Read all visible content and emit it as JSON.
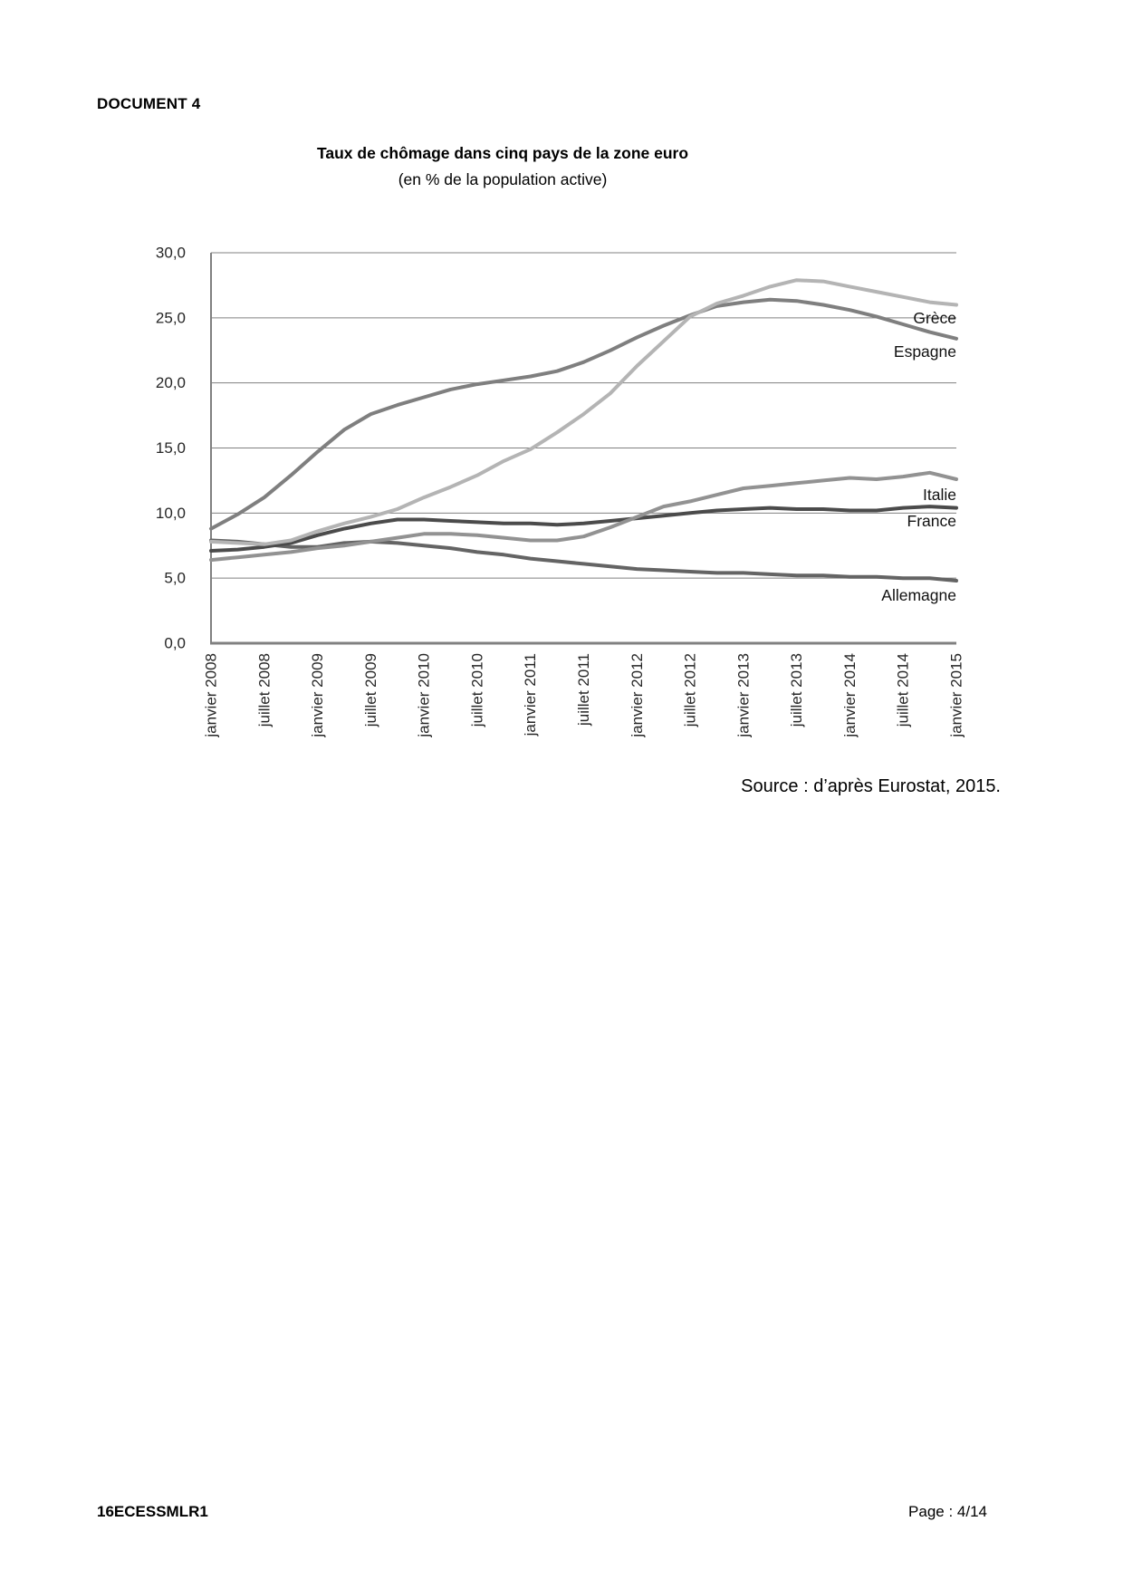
{
  "document": {
    "label": "DOCUMENT 4",
    "source": "Source : d’après Eurostat, 2015.",
    "footer_left": "16ECESSMLR1",
    "footer_right": "Page : 4/14"
  },
  "chart_data": {
    "type": "line",
    "title": "Taux de chômage dans cinq pays de la zone euro",
    "subtitle": "(en % de la population active)",
    "xlabel": "",
    "ylabel": "",
    "ylim": [
      0,
      30
    ],
    "grid": "horizontal",
    "axis_color": "#808080",
    "tick_text_color": "#262626",
    "legend_position": "end-of-line labels at right",
    "y_ticks": [
      0,
      5,
      10,
      15,
      20,
      25,
      30
    ],
    "y_tick_labels": [
      "0,0",
      "5,0",
      "10,0",
      "15,0",
      "20,0",
      "25,0",
      "30,0"
    ],
    "x_unit": "months since janvier 2008 (monthly data, ticks every 6 months)",
    "x_tick_months": [
      0,
      6,
      12,
      18,
      24,
      30,
      36,
      42,
      48,
      54,
      60,
      66,
      72,
      78,
      84
    ],
    "x_tick_labels": [
      "janvier 2008",
      "juillet 2008",
      "janvier 2009",
      "juillet 2009",
      "janvier 2010",
      "juillet 2010",
      "janvier 2011",
      "juillet 2011",
      "janvier 2012",
      "juillet 2012",
      "janvier 2013",
      "juillet 2013",
      "janvier 2014",
      "juillet 2014",
      "janvier 2015"
    ],
    "sample_months": [
      0,
      3,
      6,
      9,
      12,
      15,
      18,
      21,
      24,
      27,
      30,
      33,
      36,
      39,
      42,
      45,
      48,
      51,
      54,
      57,
      60,
      63,
      66,
      69,
      72,
      75,
      78,
      81,
      84
    ],
    "series": [
      {
        "name": "Grèce",
        "key": "grece",
        "color": "#b4b4b4",
        "label_y": 25.0,
        "values": [
          7.8,
          7.7,
          7.6,
          7.9,
          8.6,
          9.2,
          9.7,
          10.3,
          11.2,
          12.0,
          12.9,
          14.0,
          14.9,
          16.2,
          17.6,
          19.2,
          21.3,
          23.2,
          25.1,
          26.1,
          26.7,
          27.4,
          27.9,
          27.8,
          27.4,
          27.0,
          26.6,
          26.2,
          26.0
        ]
      },
      {
        "name": "Espagne",
        "key": "espagne",
        "color": "#7f7f7f",
        "label_y": 22.4,
        "values": [
          8.8,
          9.9,
          11.2,
          12.9,
          14.7,
          16.4,
          17.6,
          18.3,
          18.9,
          19.5,
          19.9,
          20.2,
          20.5,
          20.9,
          21.6,
          22.5,
          23.5,
          24.4,
          25.2,
          25.9,
          26.2,
          26.4,
          26.3,
          26.0,
          25.6,
          25.1,
          24.5,
          23.9,
          23.4
        ]
      },
      {
        "name": "Italie",
        "key": "italie",
        "color": "#929292",
        "label_y": 11.4,
        "values": [
          6.4,
          6.6,
          6.8,
          7.0,
          7.3,
          7.5,
          7.8,
          8.1,
          8.4,
          8.4,
          8.3,
          8.1,
          7.9,
          7.9,
          8.2,
          8.9,
          9.7,
          10.5,
          10.9,
          11.4,
          11.9,
          12.1,
          12.3,
          12.5,
          12.7,
          12.6,
          12.8,
          13.1,
          12.6
        ]
      },
      {
        "name": "France",
        "key": "france",
        "color": "#4b4b4b",
        "label_y": 9.4,
        "values": [
          7.1,
          7.2,
          7.4,
          7.7,
          8.3,
          8.8,
          9.2,
          9.5,
          9.5,
          9.4,
          9.3,
          9.2,
          9.2,
          9.1,
          9.2,
          9.4,
          9.6,
          9.8,
          10.0,
          10.2,
          10.3,
          10.4,
          10.3,
          10.3,
          10.2,
          10.2,
          10.4,
          10.5,
          10.4
        ]
      },
      {
        "name": "Allemagne",
        "key": "allemagne",
        "color": "#646464",
        "label_y": 3.7,
        "values": [
          7.9,
          7.8,
          7.6,
          7.4,
          7.4,
          7.7,
          7.8,
          7.7,
          7.5,
          7.3,
          7.0,
          6.8,
          6.5,
          6.3,
          6.1,
          5.9,
          5.7,
          5.6,
          5.5,
          5.4,
          5.4,
          5.3,
          5.2,
          5.2,
          5.1,
          5.1,
          5.0,
          5.0,
          4.8
        ]
      }
    ]
  }
}
